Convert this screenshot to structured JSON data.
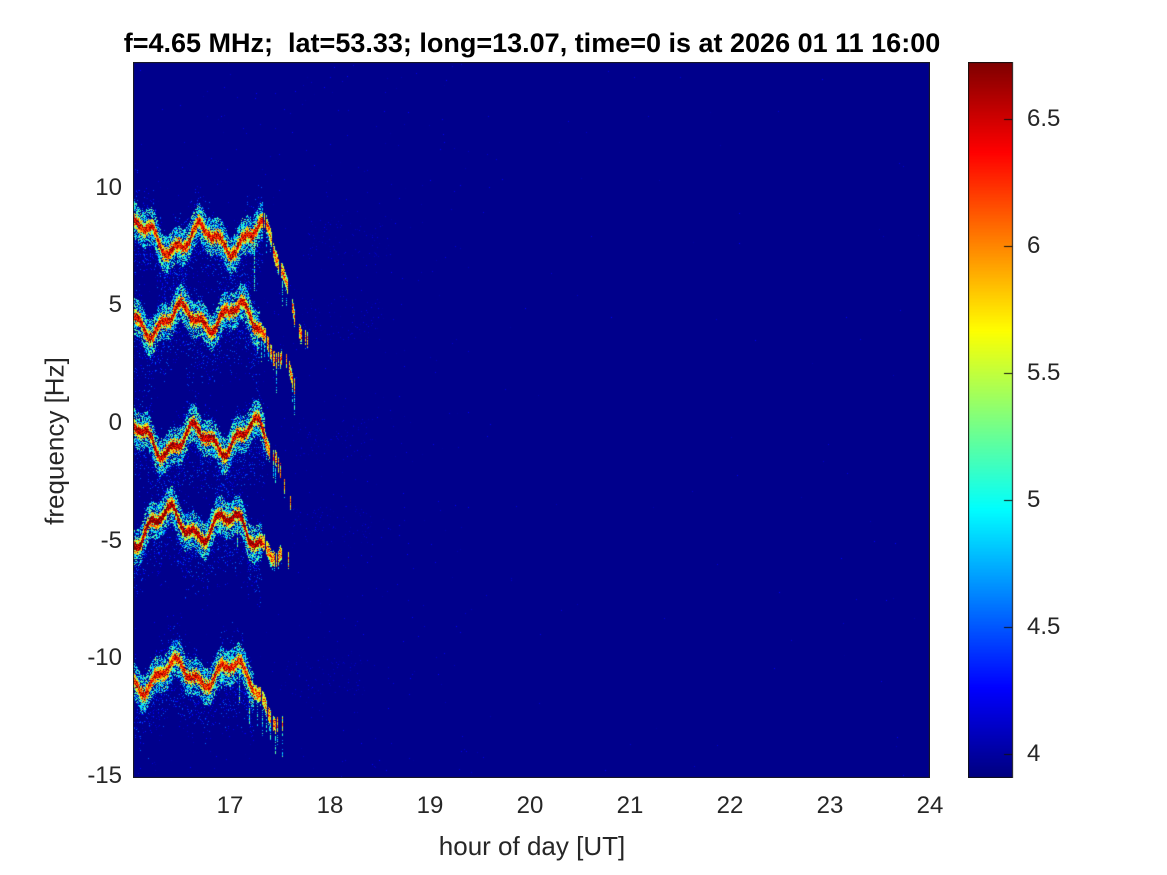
{
  "chart_data": {
    "type": "heatmap",
    "subtype": "doppler-spectrogram",
    "title": "f=4.65 MHz;  lat=53.33; long=13.07, time=0 is at 2026 01 11 16:00",
    "xlabel": "hour of day [UT]",
    "ylabel": "frequency [Hz]",
    "x_range": [
      16.03,
      24
    ],
    "y_range": [
      -15.1,
      15.35
    ],
    "x_ticks": [
      17,
      18,
      19,
      20,
      21,
      22,
      23,
      24
    ],
    "y_ticks": [
      10,
      5,
      0,
      -5,
      -10,
      -15
    ],
    "grid": false,
    "colormap": "jet",
    "background_value": 3.94,
    "colorbar": {
      "position": "right",
      "range": [
        3.905,
        6.725
      ],
      "ticks": [
        4,
        4.5,
        5,
        5.5,
        6,
        6.5
      ]
    },
    "spectral_traces": [
      {
        "label": "line near +7.9 Hz",
        "center_freq_hz": 7.9,
        "osc_amp_hz": 0.55,
        "osc_period_hr": 0.62,
        "phase": 0.6,
        "start_hr": 16.03,
        "solid_until_hr": 17.33,
        "fade_out_hr": 17.78,
        "peak_value": 6.55
      },
      {
        "label": "line near +4.5 Hz",
        "center_freq_hz": 4.45,
        "osc_amp_hz": 0.5,
        "osc_period_hr": 0.58,
        "phase": 2.4,
        "start_hr": 16.03,
        "solid_until_hr": 17.3,
        "fade_out_hr": 17.72,
        "peak_value": 6.6
      },
      {
        "label": "line near -0.7 Hz",
        "center_freq_hz": -0.65,
        "osc_amp_hz": 0.55,
        "osc_period_hr": 0.6,
        "phase": 1.1,
        "start_hr": 16.03,
        "solid_until_hr": 17.35,
        "fade_out_hr": 17.62,
        "peak_value": 6.7
      },
      {
        "label": "line near -4.4 Hz",
        "center_freq_hz": -4.4,
        "osc_amp_hz": 0.6,
        "osc_period_hr": 0.63,
        "phase": 4.2,
        "start_hr": 16.03,
        "solid_until_hr": 17.32,
        "fade_out_hr": 17.62,
        "peak_value": 6.8
      },
      {
        "label": "line near -10.7 Hz",
        "center_freq_hz": -10.7,
        "osc_amp_hz": 0.5,
        "osc_period_hr": 0.6,
        "phase": 3.3,
        "start_hr": 16.03,
        "solid_until_hr": 17.24,
        "fade_out_hr": 17.55,
        "peak_value": 6.5
      }
    ],
    "signal_present_hours": [
      16.03,
      17.78
    ],
    "seed": 1337
  },
  "colors": {
    "figure_background": "#ffffff",
    "plot_background_blue": "#00008c",
    "tick_label_color": "#262626",
    "title_color": "#000000",
    "axis_box_color": "#1a1a1a"
  }
}
